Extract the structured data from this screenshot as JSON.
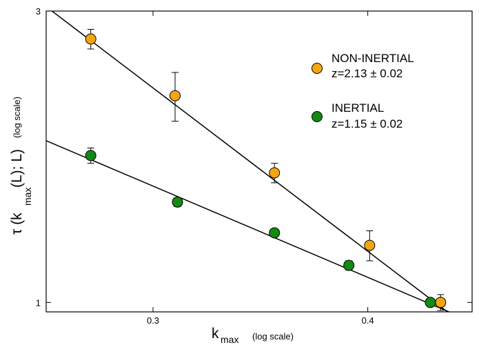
{
  "chart_data": {
    "type": "scatter",
    "xlabel": {
      "main": "k",
      "sub": "max",
      "note": "(log scale)"
    },
    "ylabel": {
      "prefix": "τ (k",
      "sub": "max",
      "suffix": "(L); L)",
      "note": "(log scale)"
    },
    "x_scale": "log",
    "y_scale": "log",
    "xlim": [
      0.26,
      0.46
    ],
    "ylim": [
      0.965,
      3.0
    ],
    "x_ticks": [
      {
        "value": 0.3,
        "label": "0.3"
      },
      {
        "value": 0.4,
        "label": "0.4"
      }
    ],
    "y_ticks": [
      {
        "value": 1,
        "label": "1"
      },
      {
        "value": 3,
        "label": "3"
      }
    ],
    "grid": false,
    "legend_position": "top-right",
    "series": [
      {
        "name": "NON-INERTIAL",
        "exponent_label": "z=2.13 ± 0.02",
        "color": "#f5a412",
        "points": [
          {
            "x": 0.276,
            "y": 2.7,
            "err": 0.1
          },
          {
            "x": 0.309,
            "y": 2.18,
            "err": 0.2
          },
          {
            "x": 0.353,
            "y": 1.63,
            "err": 0.06
          },
          {
            "x": 0.401,
            "y": 1.24,
            "err": 0.07
          },
          {
            "x": 0.441,
            "y": 1.0,
            "err": 0.03
          }
        ],
        "fit": {
          "x": [
            0.26,
            0.46
          ],
          "y": [
            3.05,
            0.899
          ]
        }
      },
      {
        "name": "INERTIAL",
        "exponent_label": "z=1.15 ± 0.02",
        "color": "#138a13",
        "points": [
          {
            "x": 0.276,
            "y": 1.74,
            "err": 0.05
          },
          {
            "x": 0.31,
            "y": 1.46,
            "err": 0.025
          },
          {
            "x": 0.353,
            "y": 1.3,
            "err": 0.0
          },
          {
            "x": 0.39,
            "y": 1.15,
            "err": 0.02
          },
          {
            "x": 0.435,
            "y": 1.0,
            "err": 0.015
          }
        ],
        "fit": {
          "x": [
            0.26,
            0.46
          ],
          "y": [
            1.84,
            0.93
          ]
        }
      }
    ]
  }
}
